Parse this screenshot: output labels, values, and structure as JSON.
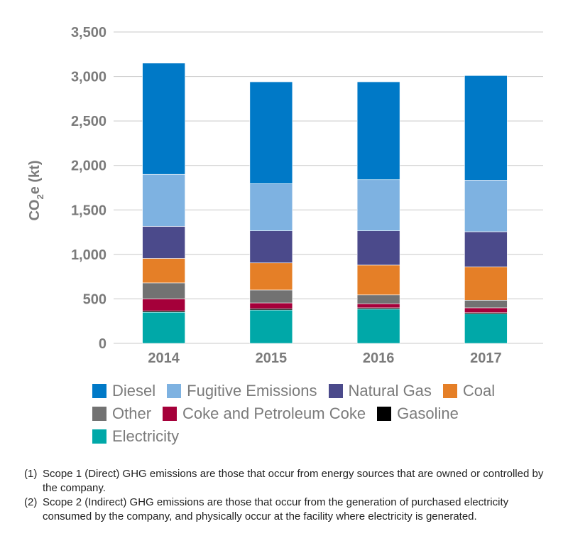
{
  "chart_data": {
    "type": "bar",
    "stacked": true,
    "categories": [
      "2014",
      "2015",
      "2016",
      "2017"
    ],
    "ylabel": "CO2e (kt)",
    "ylabel_main": "CO",
    "ylabel_sub": "2",
    "ylabel_rest": "e (kt)",
    "ylim": [
      0,
      3500
    ],
    "yticks": [
      0,
      500,
      1000,
      1500,
      2000,
      2500,
      3000,
      3500
    ],
    "ytick_labels": [
      "0",
      "500",
      "1,000",
      "1,500",
      "2,000",
      "2,500",
      "3,000",
      "3,500"
    ],
    "grid": true,
    "series": [
      {
        "name": "Electricity",
        "color": "#00a8a8",
        "values": [
          350,
          375,
          385,
          330
        ]
      },
      {
        "name": "Gasoline",
        "color": "#000000",
        "values": [
          15,
          15,
          15,
          15
        ]
      },
      {
        "name": "Coke and Petroleum Coke",
        "color": "#a5003a",
        "values": [
          135,
          65,
          45,
          55
        ]
      },
      {
        "name": "Other",
        "color": "#727272",
        "values": [
          180,
          145,
          100,
          85
        ]
      },
      {
        "name": "Coal",
        "color": "#e57f27",
        "values": [
          275,
          305,
          335,
          375
        ]
      },
      {
        "name": "Natural Gas",
        "color": "#4b4a8b",
        "values": [
          360,
          360,
          385,
          395
        ]
      },
      {
        "name": "Fugitive Emissions",
        "color": "#7eb2e1",
        "values": [
          585,
          530,
          575,
          580
        ]
      },
      {
        "name": "Diesel",
        "color": "#0079c7",
        "values": [
          1250,
          1145,
          1100,
          1175
        ]
      }
    ]
  },
  "legend_rows": [
    [
      "Diesel",
      "Fugitive Emissions",
      "Natural Gas",
      "Coal"
    ],
    [
      "Other",
      "Coke and Petroleum Coke",
      "Gasoline"
    ],
    [
      "Electricity"
    ]
  ],
  "notes": [
    {
      "num": "(1)",
      "text": "Scope 1 (Direct) GHG emissions are those that occur from energy sources that are owned or controlled by the company."
    },
    {
      "num": "(2)",
      "text": "Scope 2 (Indirect) GHG emissions are those that occur from the generation of purchased electricity consumed by the company, and physically occur at the facility where electricity is generated."
    }
  ]
}
